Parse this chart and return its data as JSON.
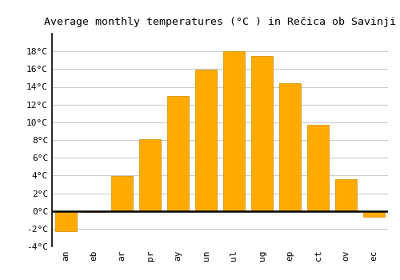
{
  "title": "Average monthly temperatures (°C ) in Rečica ob Savinji",
  "months": [
    "an",
    "eb",
    "ar",
    "pr",
    "ay",
    "un",
    "ul",
    "ug",
    "ep",
    "ct",
    "ov",
    "ec"
  ],
  "values": [
    -2.3,
    -0.1,
    3.9,
    8.1,
    13.0,
    15.9,
    18.0,
    17.5,
    14.4,
    9.7,
    3.6,
    -0.7
  ],
  "bar_color": "#FFAA00",
  "bar_edge_color": "#CC8800",
  "background_color": "#FFFFFF",
  "grid_color": "#CCCCCC",
  "ylim": [
    -4,
    20
  ],
  "yticks": [
    -4,
    -2,
    0,
    2,
    4,
    6,
    8,
    10,
    12,
    14,
    16,
    18
  ],
  "zero_line_color": "#000000",
  "title_fontsize": 9.5,
  "tick_fontsize": 8,
  "bar_width": 0.75
}
